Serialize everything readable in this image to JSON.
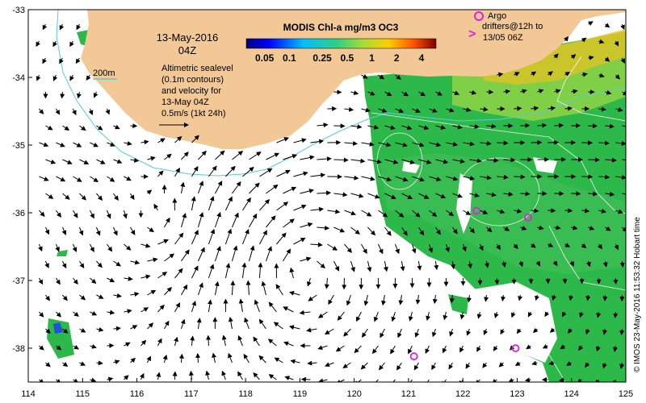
{
  "map": {
    "date_label": "13-May-2016",
    "time_label": "04Z",
    "isobath_label": "200m",
    "legend_text": [
      "Altimetric sealevel",
      "(0.1m contours)",
      "and velocity for",
      "13-May 04Z",
      "0.5m/s (1kt 24h)"
    ],
    "colorbar": {
      "title": "MODIS Chl-a mg/m3 OC3",
      "tick_labels": [
        "0.05",
        "0.1",
        "0.25",
        "0.5",
        "1",
        "2",
        "4"
      ],
      "tick_values": [
        0.05,
        0.1,
        0.25,
        0.5,
        1,
        2,
        4
      ],
      "range": [
        0.03,
        6
      ]
    },
    "argo": {
      "label_lines": [
        "Argo",
        "drifters@12h to",
        "13/05 06Z"
      ],
      "floats": [
        {
          "lon": 122.25,
          "lat": -35.97
        },
        {
          "lon": 123.2,
          "lat": -36.07
        },
        {
          "lon": 121.1,
          "lat": -38.12
        },
        {
          "lon": 122.97,
          "lat": -38.0
        }
      ]
    },
    "credit": "© IMOS 23-May-2016 11:53:32 Hobart time",
    "axes": {
      "lon_ticks": [
        114,
        115,
        116,
        117,
        118,
        119,
        120,
        121,
        122,
        123,
        124,
        125
      ],
      "lat_ticks": [
        -33,
        -34,
        -35,
        -36,
        -37,
        -38
      ],
      "lon_range": [
        114,
        125
      ],
      "lat_range": [
        -38.5,
        -33
      ]
    },
    "colors": {
      "land": "#f2c896",
      "isobath": "#55ccdd",
      "chl_green": "#2db84a",
      "argo": "#e020e0"
    }
  }
}
